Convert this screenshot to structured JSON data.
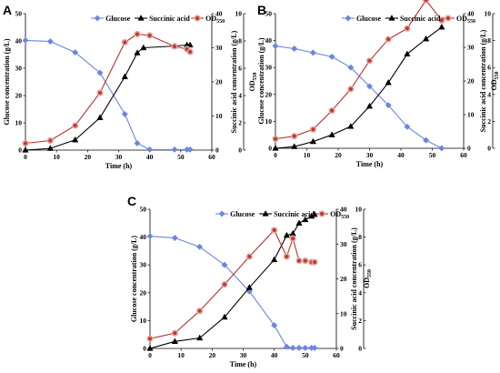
{
  "chart_data": [
    {
      "panel_label": "A",
      "type": "line",
      "xlabel": "Time (h)",
      "ylabel_left": "Glucose concentration (g/L)",
      "ylabel_right1": "Succinic acid concentration (g/L)",
      "ylabel_right2": "OD550",
      "xlim": [
        0,
        60
      ],
      "ylim_left": [
        0,
        50
      ],
      "ylim_right1": [
        0,
        40
      ],
      "ylim_right2": [
        0,
        10
      ],
      "x_ticks": [
        "0",
        "10",
        "20",
        "30",
        "40",
        "50",
        "60"
      ],
      "y_left_ticks": [
        "0",
        "10",
        "20",
        "30",
        "40",
        "50"
      ],
      "y_right1_ticks": [
        "0",
        "10",
        "20",
        "30",
        "40"
      ],
      "y_right2_ticks": [
        "0",
        "2",
        "4",
        "6",
        "8",
        "10"
      ],
      "legend": [
        "Glucose",
        "Succinic acid",
        "OD550"
      ],
      "series": [
        {
          "name": "Glucose",
          "axis": "left",
          "color": "#6a86e0",
          "marker": "diamond",
          "x": [
            0,
            8,
            16,
            24,
            32,
            36,
            40,
            48,
            52,
            53
          ],
          "y": [
            40.2,
            39.8,
            35.8,
            28.3,
            13.2,
            2.5,
            0.2,
            0.2,
            0.2,
            0.2
          ]
        },
        {
          "name": "Succinic acid",
          "axis": "right1",
          "color": "#000000",
          "marker": "triangle",
          "x": [
            0,
            8,
            16,
            24,
            32,
            36,
            38,
            48,
            52,
            53
          ],
          "y": [
            0,
            0.5,
            3,
            9.5,
            21.5,
            28.5,
            30,
            30.5,
            30.8,
            30.8
          ]
        },
        {
          "name": "OD550",
          "axis": "right2",
          "color": "#b5302f",
          "marker": "circle",
          "x": [
            0,
            8,
            16,
            24,
            32,
            36,
            40,
            48,
            52,
            53
          ],
          "y": [
            0.5,
            0.7,
            1.8,
            4.2,
            7.9,
            8.5,
            8.4,
            7.6,
            7.4,
            7.2
          ]
        }
      ]
    },
    {
      "panel_label": "B",
      "type": "line",
      "xlabel": "Time (h)",
      "ylabel_left": "Glucose concentration (g/L)",
      "ylabel_right1": "Succinic acid concentration (g/L)",
      "ylabel_right2": "OD550",
      "xlim": [
        0,
        60
      ],
      "ylim_left": [
        0,
        50
      ],
      "ylim_right1": [
        0,
        40
      ],
      "ylim_right2": [
        0,
        10
      ],
      "x_ticks": [
        "0",
        "10",
        "20",
        "30",
        "40",
        "50",
        "60"
      ],
      "y_left_ticks": [
        "0",
        "10",
        "20",
        "30",
        "40",
        "50"
      ],
      "y_right1_ticks": [
        "0",
        "10",
        "20",
        "30",
        "40"
      ],
      "y_right2_ticks": [
        "0",
        "2",
        "4",
        "6",
        "8",
        "10"
      ],
      "legend": [
        "Glucose",
        "Succinic acid",
        "OD550"
      ],
      "series": [
        {
          "name": "Glucose",
          "axis": "left",
          "color": "#6a86e0",
          "marker": "diamond",
          "x": [
            0,
            6,
            12,
            18,
            24,
            30,
            36,
            42,
            48,
            53
          ],
          "y": [
            38,
            37,
            35.5,
            34,
            30,
            23,
            16,
            8,
            3,
            0
          ]
        },
        {
          "name": "Succinic acid",
          "axis": "right1",
          "color": "#000000",
          "marker": "triangle",
          "x": [
            0,
            6,
            12,
            18,
            24,
            30,
            36,
            42,
            48,
            53
          ],
          "y": [
            0,
            0.5,
            2,
            4,
            6.5,
            12.5,
            19.5,
            28,
            32.5,
            36
          ]
        },
        {
          "name": "OD550",
          "axis": "right2",
          "color": "#b5302f",
          "marker": "circle",
          "x": [
            0,
            6,
            12,
            18,
            24,
            30,
            36,
            42,
            48,
            53
          ],
          "y": [
            0.7,
            0.9,
            1.4,
            2.8,
            4.4,
            6.5,
            8.1,
            8.9,
            11.0,
            9.5
          ]
        }
      ]
    },
    {
      "panel_label": "C",
      "type": "line",
      "xlabel": "Time (h)",
      "ylabel_left": "Glucose concentration (g/L)",
      "ylabel_right1": "Succinic acid concentration (g/L)",
      "ylabel_right2": "OD550",
      "xlim": [
        0,
        60
      ],
      "ylim_left": [
        0,
        50
      ],
      "ylim_right1": [
        0,
        40
      ],
      "ylim_right2": [
        0,
        10
      ],
      "x_ticks": [
        "0",
        "10",
        "20",
        "30",
        "40",
        "50",
        "60"
      ],
      "y_left_ticks": [
        "0",
        "10",
        "20",
        "30",
        "40",
        "50"
      ],
      "y_right1_ticks": [
        "0",
        "10",
        "20",
        "30",
        "40"
      ],
      "y_right2_ticks": [
        "0",
        "2",
        "4",
        "6",
        "8",
        "10"
      ],
      "legend": [
        "Glucose",
        "Succinic acid",
        "OD550"
      ],
      "series": [
        {
          "name": "Glucose",
          "axis": "left",
          "color": "#6a86e0",
          "marker": "diamond",
          "x": [
            0,
            8,
            16,
            24,
            32,
            40,
            44,
            46,
            48,
            50,
            52,
            53
          ],
          "y": [
            40.3,
            39.7,
            36.5,
            30,
            20.5,
            8.3,
            0.6,
            0.2,
            0.2,
            0.2,
            0.2,
            0.2
          ]
        },
        {
          "name": "Succinic acid",
          "axis": "right1",
          "color": "#000000",
          "marker": "triangle",
          "x": [
            0,
            8,
            16,
            24,
            32,
            40,
            44,
            46,
            48,
            50,
            52,
            53
          ],
          "y": [
            0,
            2,
            3,
            9,
            17.5,
            25.5,
            32.5,
            33,
            36,
            37,
            38,
            38.5
          ]
        },
        {
          "name": "OD550",
          "axis": "right2",
          "color": "#b5302f",
          "marker": "circle",
          "x": [
            0,
            8,
            16,
            24,
            32,
            40,
            44,
            46,
            48,
            50,
            52,
            53
          ],
          "y": [
            0.7,
            1.1,
            2.7,
            4.6,
            6.6,
            8.5,
            6.6,
            7.9,
            6.3,
            6.3,
            6.2,
            6.2
          ]
        }
      ]
    }
  ]
}
